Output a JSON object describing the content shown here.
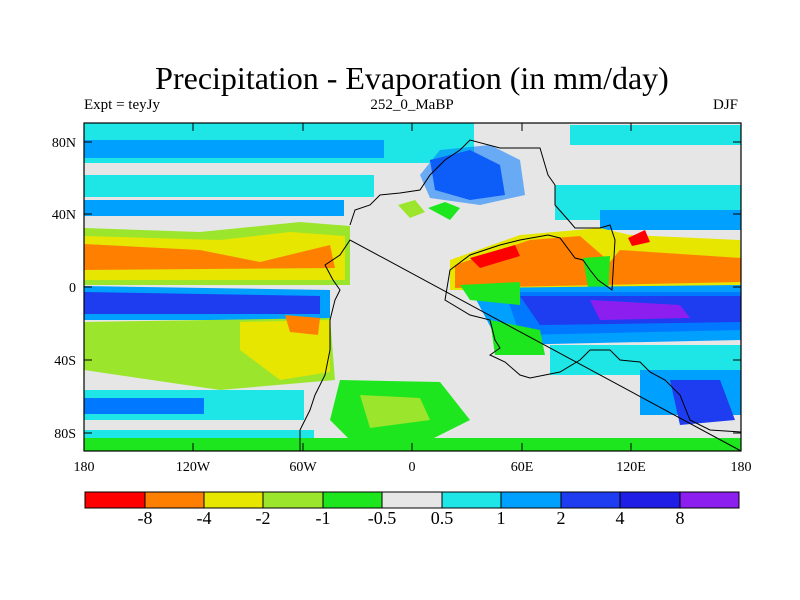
{
  "title": "Precipitation - Evaporation (in mm/day)",
  "subtitle": {
    "left": "Expt = teyJy",
    "center": "252_0_MaBP",
    "right": "DJF"
  },
  "axes": {
    "lat_ticks": [
      "80N",
      "40N",
      "0",
      "40S",
      "80S"
    ],
    "lon_ticks": [
      "180",
      "120W",
      "60W",
      "0",
      "60E",
      "120E",
      "180"
    ]
  },
  "colors": {
    "c_m8": "#ff0000",
    "c_m4": "#ff8000",
    "c_m2": "#e6e600",
    "c_m1": "#9be62d",
    "c_m05": "#1ee61e",
    "c_0": "#e6e6e6",
    "c_05": "#1ee6e6",
    "c_1": "#00a0ff",
    "c_2": "#0078ff",
    "c_4": "#1e3cf0",
    "c_8": "#1e1ee6",
    "c_inf": "#8c1ef0"
  },
  "colorbar": {
    "colors": [
      "#ff0000",
      "#ff8000",
      "#e6e600",
      "#9be62d",
      "#1ee61e",
      "#e6e6e6",
      "#1ee6e6",
      "#00a0ff",
      "#0078ff",
      "#1e3cf0",
      "#1e1ee6",
      "#8c1ef0"
    ],
    "labels": [
      "-8",
      "-4",
      "-2",
      "-1",
      "-0.5",
      "0.5",
      "1",
      "2",
      "4",
      "8"
    ]
  }
}
